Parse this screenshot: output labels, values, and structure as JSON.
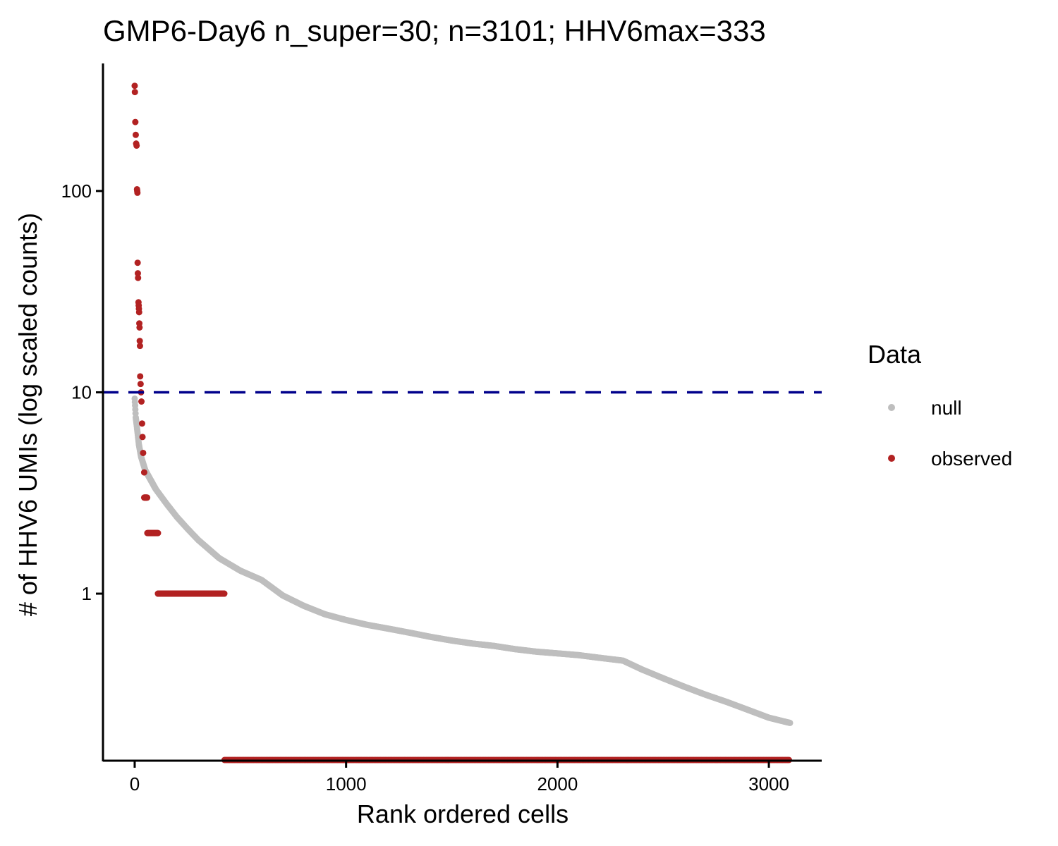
{
  "chart_data": {
    "type": "scatter",
    "title": "GMP6-Day6 n_super=30; n=3101; HHV6max=333",
    "xlabel": "Rank ordered cells",
    "ylabel": "# of HHV6 UMIs (log scaled counts)",
    "y_scale": "log10",
    "xlim": [
      -150,
      3250
    ],
    "ylim": [
      0.148,
      430
    ],
    "x_ticks": [
      0,
      1000,
      2000,
      3000
    ],
    "x_tick_labels": [
      "0",
      "1000",
      "2000",
      "3000"
    ],
    "y_ticks": [
      1,
      10,
      100
    ],
    "y_tick_labels": [
      "1",
      "10",
      "100"
    ],
    "threshold_line": {
      "y": 10,
      "style": "dashed",
      "color": "#00008B"
    },
    "grid": false,
    "legend": {
      "title": "Data",
      "position": "right",
      "entries": [
        {
          "label": "null",
          "color": "#BEBEBE"
        },
        {
          "label": "observed",
          "color": "#B22222"
        }
      ]
    },
    "series": [
      {
        "name": "null",
        "color": "#BEBEBE",
        "curve_points": [
          [
            0,
            9.3
          ],
          [
            2,
            8.6
          ],
          [
            5,
            7.5
          ],
          [
            10,
            6.8
          ],
          [
            20,
            5.5
          ],
          [
            30,
            4.8
          ],
          [
            50,
            4.1
          ],
          [
            80,
            3.6
          ],
          [
            100,
            3.3
          ],
          [
            150,
            2.8
          ],
          [
            200,
            2.4
          ],
          [
            250,
            2.1
          ],
          [
            300,
            1.85
          ],
          [
            400,
            1.5
          ],
          [
            500,
            1.3
          ],
          [
            600,
            1.17
          ],
          [
            700,
            0.98
          ],
          [
            800,
            0.87
          ],
          [
            900,
            0.79
          ],
          [
            1000,
            0.74
          ],
          [
            1100,
            0.7
          ],
          [
            1200,
            0.67
          ],
          [
            1300,
            0.64
          ],
          [
            1400,
            0.61
          ],
          [
            1500,
            0.585
          ],
          [
            1600,
            0.565
          ],
          [
            1700,
            0.55
          ],
          [
            1800,
            0.53
          ],
          [
            1900,
            0.515
          ],
          [
            2000,
            0.505
          ],
          [
            2100,
            0.495
          ],
          [
            2200,
            0.48
          ],
          [
            2310,
            0.465
          ],
          [
            2400,
            0.42
          ],
          [
            2500,
            0.38
          ],
          [
            2600,
            0.345
          ],
          [
            2700,
            0.315
          ],
          [
            2800,
            0.29
          ],
          [
            2900,
            0.265
          ],
          [
            3000,
            0.242
          ],
          [
            3100,
            0.228
          ]
        ]
      },
      {
        "name": "observed",
        "color": "#B22222",
        "points": [
          [
            0,
            333
          ],
          [
            1,
            310
          ],
          [
            3,
            220
          ],
          [
            5,
            190
          ],
          [
            7,
            172
          ],
          [
            9,
            168
          ],
          [
            11,
            102
          ],
          [
            12,
            100
          ],
          [
            13,
            98
          ],
          [
            14,
            44
          ],
          [
            15,
            39
          ],
          [
            16,
            37
          ],
          [
            18,
            28
          ],
          [
            19,
            27
          ],
          [
            20,
            26
          ],
          [
            21,
            25
          ],
          [
            22,
            22
          ],
          [
            23,
            21
          ],
          [
            24,
            18
          ],
          [
            25,
            17
          ],
          [
            26,
            12
          ],
          [
            28,
            11
          ],
          [
            30,
            10
          ],
          [
            32,
            9
          ],
          [
            35,
            7
          ],
          [
            37,
            6
          ],
          [
            40,
            5
          ],
          [
            45,
            4
          ]
        ],
        "runs": [
          {
            "y": 3,
            "x_start": 45,
            "x_end": 60
          },
          {
            "y": 2,
            "x_start": 60,
            "x_end": 110
          },
          {
            "y": 1,
            "x_start": 110,
            "x_end": 425
          },
          {
            "y": 0,
            "x_start": 425,
            "x_end": 3100,
            "note": "zero counts, drawn at panel bottom"
          }
        ]
      }
    ]
  }
}
